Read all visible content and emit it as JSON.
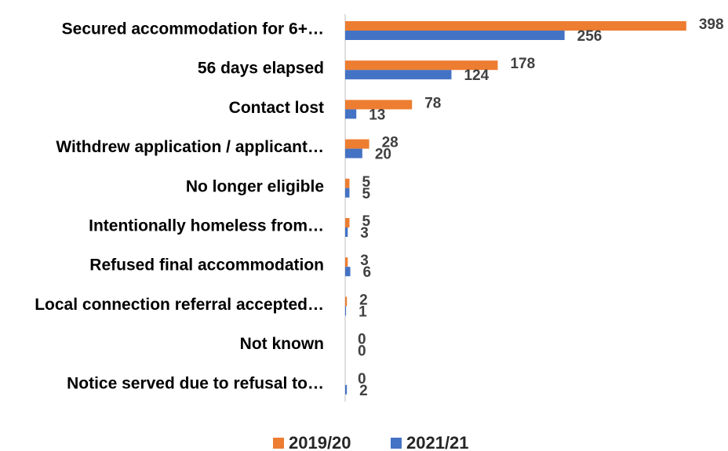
{
  "chart_data": {
    "type": "hbar",
    "categories": [
      "Secured accommodation for 6+…",
      "56 days elapsed",
      "Contact lost",
      "Withdrew application / applicant…",
      "No longer eligible",
      "Intentionally homeless from…",
      "Refused final accommodation",
      "Local connection referral accepted…",
      "Not known",
      "Notice served due to refusal to…"
    ],
    "series": [
      {
        "name": "2019/20",
        "color": "#ed7d31",
        "values": [
          398,
          178,
          78,
          28,
          5,
          5,
          3,
          2,
          0,
          0
        ]
      },
      {
        "name": "2021/21",
        "color": "#4472c4",
        "values": [
          256,
          124,
          13,
          20,
          5,
          3,
          6,
          1,
          0,
          2
        ]
      }
    ],
    "xlim": [
      0,
      400
    ],
    "legend": "bottom"
  }
}
